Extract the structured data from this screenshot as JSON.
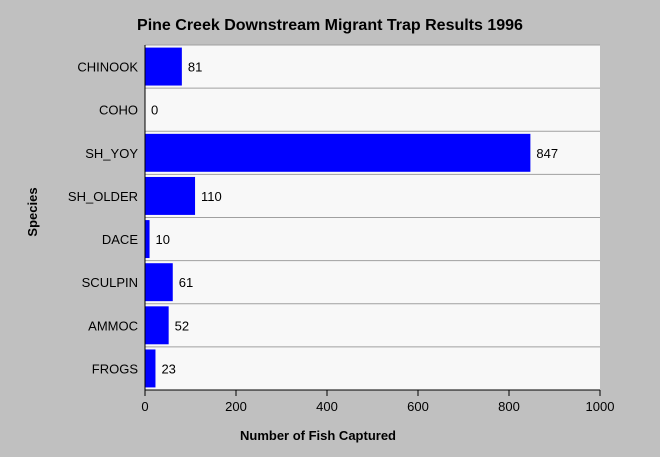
{
  "chart_data": {
    "type": "bar",
    "orientation": "horizontal",
    "title": "Pine Creek Downstream Migrant Trap Results 1996",
    "xlabel": "Number of Fish Captured",
    "ylabel": "Species",
    "categories": [
      "CHINOOK",
      "COHO",
      "SH_YOY",
      "SH_OLDER",
      "DACE",
      "SCULPIN",
      "AMMOC",
      "FROGS"
    ],
    "values": [
      81,
      0,
      847,
      110,
      10,
      61,
      52,
      23
    ],
    "xlim": [
      0,
      1000
    ],
    "xticks": [
      0,
      200,
      400,
      600,
      800,
      1000
    ],
    "grid": "horizontal",
    "legend": "none",
    "colors": {
      "bar": "#0000ff",
      "plot_background": "#f8f8f8",
      "page_background": "#c0c0c0"
    }
  }
}
